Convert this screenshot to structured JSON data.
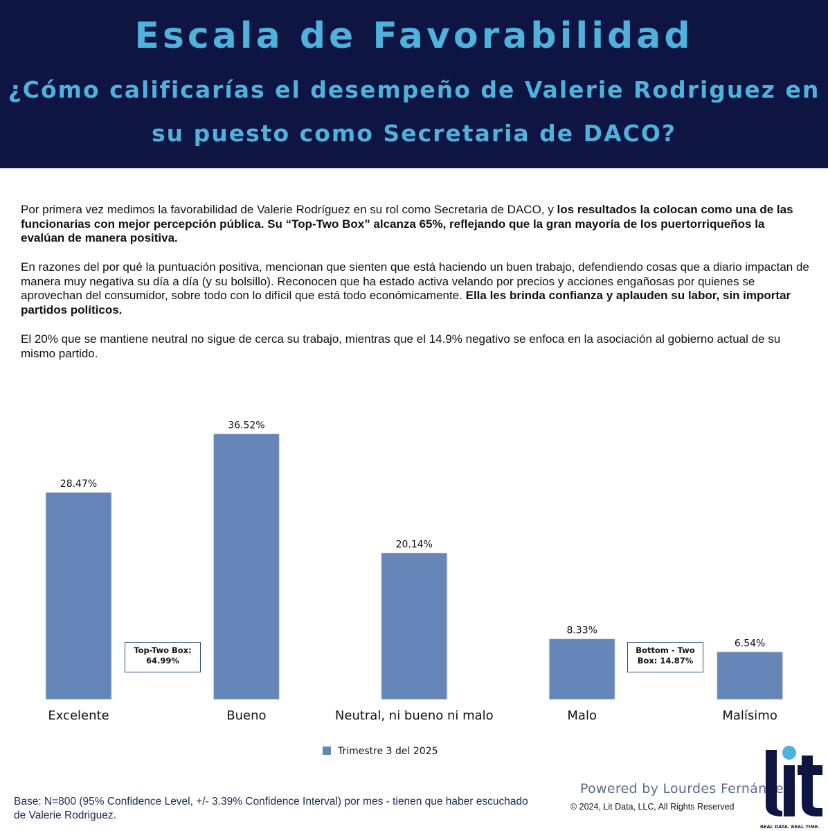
{
  "header": {
    "title": "Escala de Favorabilidad",
    "subtitle_line1": "¿Cómo calificarías el desempeño de Valerie Rodriguez en",
    "subtitle_line2": "su puesto como Secretaria de DACO?"
  },
  "paragraphs": {
    "p1_normal": "Por primera vez medimos la favorabilidad de Valerie Rodríguez en su rol como Secretaria de DACO, y ",
    "p1_bold": "los resultados la colocan como una de las funcionarias con mejor percepción pública. Su “Top-Two Box” alcanza 65%, reflejando que la gran mayoría de los puertorriqueños la evalúan de manera positiva.",
    "p2_normal": "En razones del por qué la puntuación positiva, mencionan que sienten que está haciendo un buen trabajo, defendiendo cosas que a diario impactan de manera muy negativa su día a día (y su bolsillo). Reconocen que ha estado activa velando por precios y acciones engañosas por quienes se aprovechan del consumidor, sobre todo con lo difícil que está todo económicamente. ",
    "p2_bold": "Ella les brinda confianza y aplauden su labor, sin importar partidos políticos.",
    "p3": "El 20% que se mantiene neutral no sigue de cerca su trabajo, mientras que el 14.9% negativo se enfoca en la asociación al gobierno actual de su mismo partido."
  },
  "chart_data": {
    "type": "bar",
    "categories": [
      "Excelente",
      "Bueno",
      "Neutral, ni bueno ni malo",
      "Malo",
      "Malísimo"
    ],
    "series": [
      {
        "name": "Trimestre 3 del 2025",
        "values": [
          28.47,
          36.52,
          20.14,
          8.33,
          6.54
        ]
      }
    ],
    "value_labels": [
      "28.47%",
      "36.52%",
      "20.14%",
      "8.33%",
      "6.54%"
    ],
    "ylim": [
      0,
      40
    ],
    "grid": false,
    "legend_position": "bottom",
    "bar_color": "#6685b8"
  },
  "annotations": {
    "top_two": "Top-Two Box: 64.99%",
    "bottom_two": "Bottom - Two Box: 14.87%"
  },
  "footer": {
    "base": "Base: N=800 (95% Confidence Level, +/- 3.39% Confidence Interval) por mes - tienen que haber escuchado de Valerie Rodriguez.",
    "powered": "Powered by Lourdes Fernández",
    "copyright": "© 2024, Lit Data, LLC, All Rights Reserved",
    "logo_text": "lit",
    "logo_tagline": "REAL DATA. REAL TIME."
  },
  "colors": {
    "header_bg": "#0e1543",
    "header_text": "#4fb2dc",
    "logo_dot": "#4fb2dc",
    "logo_text": "#0e1543"
  }
}
